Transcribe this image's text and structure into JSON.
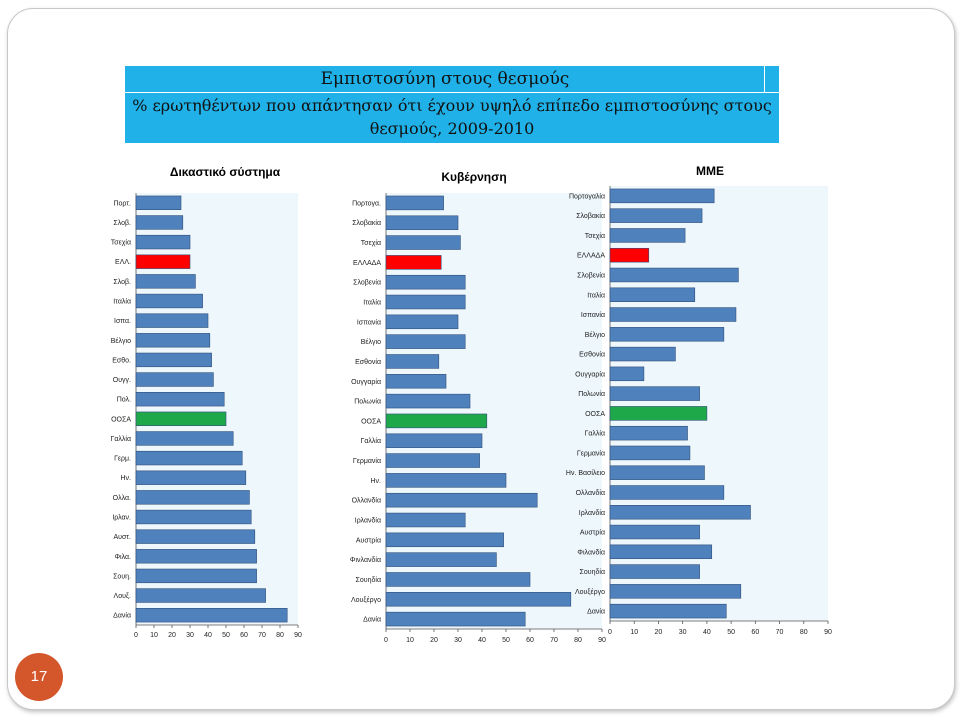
{
  "slide": {
    "title_line1": "Εμπιστοσύνη στους θεσμούς",
    "title_line2": "% ερωτηθέντων που απάντησαν ότι έχουν υψηλό επίπεδο εμπιστοσύνης στους θεσμούς, 2009-2010",
    "page_number": "17"
  },
  "colors": {
    "default": "#4f81bd",
    "greece": "#ff0000",
    "oecd": "#1fa84a",
    "title_bg": "#1fb1e8",
    "plot_bg": "#eef7fc"
  },
  "chart_data": [
    {
      "type": "bar",
      "orientation": "horizontal",
      "title": "Δικαστικό σύστημα",
      "xlim": [
        0,
        90
      ],
      "xticks": [
        0,
        10,
        20,
        30,
        40,
        50,
        60,
        70,
        80,
        90
      ],
      "categories": [
        "Πορτ.",
        "Σλοβ.",
        "Τσεχία",
        "ΕΛΛ.",
        "Σλοβ.",
        "Ιταλία",
        "Ισπα.",
        "Βέλγιο",
        "Εσθο.",
        "Ουγγ.",
        "Πολ.",
        "ΟΟΣΑ",
        "Γαλλία",
        "Γερμ.",
        "Ην.",
        "Ολλα.",
        "Ιρλαν.",
        "Αυστ.",
        "Φιλα.",
        "Σουη.",
        "Λουξ.",
        "Δανία"
      ],
      "values": [
        25,
        26,
        30,
        30,
        33,
        37,
        40,
        41,
        42,
        43,
        49,
        50,
        54,
        59,
        61,
        63,
        64,
        66,
        67,
        67,
        72,
        84
      ],
      "highlight": {
        "ΕΛΛ.": "greece",
        "ΟΟΣΑ": "oecd"
      }
    },
    {
      "type": "bar",
      "orientation": "horizontal",
      "title": "Κυβέρνηση",
      "xlim": [
        0,
        90
      ],
      "xticks": [
        0,
        10,
        20,
        30,
        40,
        50,
        60,
        70,
        80,
        90
      ],
      "categories": [
        "Πορτογα.",
        "Σλοβακία",
        "Τσεχία",
        "ΕΛΛΑΔΑ",
        "Σλοβενία",
        "Ιταλία",
        "Ισπανία",
        "Βέλγιο",
        "Εσθονία",
        "Ουγγαρία",
        "Πολωνία",
        "ΟΟΣΑ",
        "Γαλλία",
        "Γερμανία",
        "Ην.",
        "Ολλανδία",
        "Ιρλανδία",
        "Αυστρία",
        "Φινλανδία",
        "Σουηδία",
        "Λουξέργο",
        "Δανία"
      ],
      "values": [
        24,
        30,
        31,
        23,
        33,
        33,
        30,
        33,
        22,
        25,
        35,
        42,
        40,
        39,
        50,
        63,
        33,
        49,
        46,
        60,
        77,
        58
      ],
      "highlight": {
        "ΕΛΛΑΔΑ": "greece",
        "ΟΟΣΑ": "oecd"
      }
    },
    {
      "type": "bar",
      "orientation": "horizontal",
      "title": "ΜΜΕ",
      "xlim": [
        0,
        90
      ],
      "xticks": [
        0,
        10,
        20,
        30,
        40,
        50,
        60,
        70,
        80,
        90
      ],
      "categories": [
        "Πορτογαλία",
        "Σλοβακία",
        "Τσεχία",
        "ΕΛΛΑΔΑ",
        "Σλοβενία",
        "Ιταλία",
        "Ισπανία",
        "Βέλγιο",
        "Εσθονία",
        "Ουγγαρία",
        "Πολωνία",
        "ΟΟΣΑ",
        "Γαλλία",
        "Γερμανία",
        "Ην. Βασίλειο",
        "Ολλανδία",
        "Ιρλανδία",
        "Αυστρία",
        "Φιλανδία",
        "Σουηδία",
        "Λουξέργο",
        "Δανία"
      ],
      "values": [
        43,
        38,
        31,
        16,
        53,
        35,
        52,
        47,
        27,
        14,
        37,
        40,
        32,
        33,
        39,
        47,
        58,
        37,
        42,
        37,
        54,
        48
      ],
      "highlight": {
        "ΕΛΛΑΔΑ": "greece",
        "ΟΟΣΑ": "oecd"
      }
    }
  ]
}
